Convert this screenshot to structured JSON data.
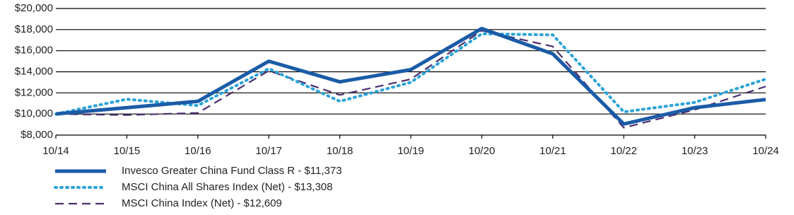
{
  "chart_data": {
    "type": "line",
    "categories": [
      "10/14",
      "10/15",
      "10/16",
      "10/17",
      "10/18",
      "10/19",
      "10/20",
      "10/21",
      "10/22",
      "10/23",
      "10/24"
    ],
    "series": [
      {
        "name": "Invesco Greater China Fund Class R - $11,373",
        "color": "#1a5ba6",
        "style": "solid",
        "values": [
          10000,
          10600,
          11200,
          15000,
          13050,
          14200,
          18100,
          15700,
          9050,
          10600,
          11373
        ]
      },
      {
        "name": "MSCI China All Shares Index (Net) - $13,308",
        "color": "#2ba3d9",
        "style": "dotted",
        "values": [
          10000,
          11400,
          10800,
          14300,
          11200,
          13000,
          17600,
          17500,
          10200,
          11100,
          13308
        ]
      },
      {
        "name": "MSCI China Index (Net) - $12,609",
        "color": "#4b2e6e",
        "style": "dashed",
        "values": [
          10000,
          9900,
          10100,
          14100,
          11800,
          13300,
          17900,
          16400,
          8700,
          10400,
          12609
        ]
      }
    ],
    "ylim": [
      8000,
      20000
    ],
    "yticks": [
      {
        "value": 8000,
        "label": "$8,000"
      },
      {
        "value": 10000,
        "label": "$10,000"
      },
      {
        "value": 12000,
        "label": "$12,000"
      },
      {
        "value": 14000,
        "label": "$14,000"
      },
      {
        "value": 16000,
        "label": "$16,000"
      },
      {
        "value": 18000,
        "label": "$18,000"
      },
      {
        "value": 20000,
        "label": "$20,000"
      }
    ],
    "grid": true
  }
}
